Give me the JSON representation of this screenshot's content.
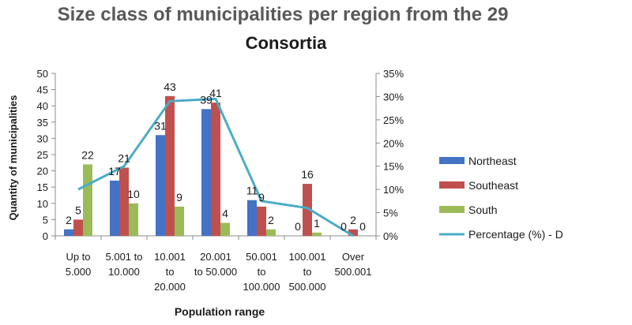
{
  "chart_data": {
    "type": "bar",
    "title_line1": "Size class of municipalities per region from the 29",
    "title_line2": "Consortia",
    "xlabel": "Population range",
    "ylabel": "Quantity of municipalities",
    "categories": [
      [
        "Up to",
        "5.000"
      ],
      [
        "5.001 to",
        "10.000"
      ],
      [
        "10.001",
        "to",
        "20.000"
      ],
      [
        "20.001",
        "to 50.000"
      ],
      [
        "50.001",
        "to",
        "100.000"
      ],
      [
        "100.001",
        "to",
        "500.000"
      ],
      [
        "Over",
        "500.001"
      ]
    ],
    "ylim": [
      0,
      50
    ],
    "yticks": [
      "0",
      "5",
      "10",
      "15",
      "20",
      "25",
      "30",
      "35",
      "40",
      "45",
      "50"
    ],
    "y2lim": [
      0,
      35
    ],
    "y2ticks": [
      "0%",
      "5%",
      "10%",
      "15%",
      "20%",
      "25%",
      "30%",
      "35%"
    ],
    "series": [
      {
        "name": "Northeast",
        "color": "#4472c4",
        "values": [
          2,
          17,
          31,
          39,
          11,
          0,
          0
        ]
      },
      {
        "name": "Southeast",
        "color": "#c0504d",
        "values": [
          5,
          21,
          43,
          41,
          9,
          16,
          2
        ]
      },
      {
        "name": "South",
        "color": "#9bbb59",
        "values": [
          22,
          10,
          9,
          4,
          2,
          1,
          0
        ]
      }
    ],
    "line_series": {
      "name": "Percentage (%) - D",
      "color": "#4bacc6",
      "values": [
        10,
        15,
        29,
        29.5,
        7.5,
        6,
        0
      ]
    },
    "legend_position": "right",
    "grid": false
  }
}
